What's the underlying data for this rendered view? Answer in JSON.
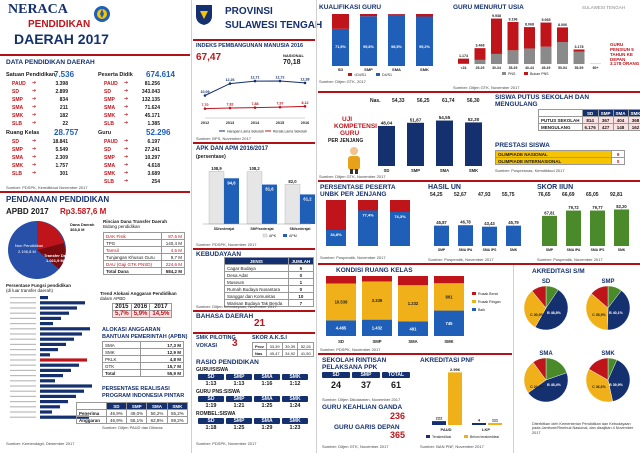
{
  "header": {
    "title1": "NERACA",
    "title2": "PENDIDIKAN",
    "title3": "DAERAH 2017",
    "province1": "PROVINSI",
    "province2": "SULAWESI TENGAH"
  },
  "colors": {
    "accent": "#c0141b",
    "navy": "#14306e",
    "blue": "#1f5fb8",
    "green": "#4a8a2a",
    "gray": "#8a8a8a"
  },
  "data_pendidikan": {
    "title": "DATA PENDIDIKAN DAERAH",
    "satuan": {
      "label": "Satuan Pendidikan",
      "total": "7.536",
      "rows": [
        [
          "PAUD",
          "3.398"
        ],
        [
          "SD",
          "2.899"
        ],
        [
          "SMP",
          "834"
        ],
        [
          "SMA",
          "211"
        ],
        [
          "SMK",
          "182"
        ],
        [
          "SLB",
          "22"
        ]
      ]
    },
    "peserta": {
      "label": "Peserta Didik",
      "total": "674.614",
      "rows": [
        [
          "PAUD",
          "81.256"
        ],
        [
          "SD",
          "343.043"
        ],
        [
          "SMP",
          "132.135"
        ],
        [
          "SMA",
          "71.624"
        ],
        [
          "SMK",
          "45.171"
        ],
        [
          "SLB",
          "1.385"
        ]
      ]
    },
    "ruang": {
      "label": "Ruang Kelas",
      "total": "28.757",
      "rows": [
        [
          "SD",
          "18.841"
        ],
        [
          "SMP",
          "5.549"
        ],
        [
          "SMA",
          "2.309"
        ],
        [
          "SMK",
          "1.757"
        ],
        [
          "SLB",
          "301"
        ]
      ]
    },
    "guru": {
      "label": "Guru",
      "total": "52.296",
      "rows": [
        [
          "PAUD",
          "6.197"
        ],
        [
          "SD",
          "27.241"
        ],
        [
          "SMP",
          "10.297"
        ],
        [
          "SMA",
          "4.618"
        ],
        [
          "SMK",
          "3.689"
        ],
        [
          "SLB",
          "254"
        ]
      ]
    },
    "source": "Sumber: PDSPK, Kemdikbud November 2017"
  },
  "pendanaan": {
    "title": "PENDANAAN PENDIDIKAN",
    "apbd_label": "APBD 2017",
    "apbd_value": "Rp3.587,6 M",
    "non_label": "Non Pendidikan",
    "non_value": "2.196,8 M",
    "dana_label": "Dana Daerah",
    "dana_value": "368,8 M",
    "transfer_label": "Transfer Daerah",
    "transfer_value": "1.021,9 M",
    "rincian_title": "Rincian Dana Transfer Daerah",
    "rincian_sub": "Bidang pendidikan",
    "rincian": [
      [
        "DAK Fisik",
        "87,6 M"
      ],
      [
        "TPG",
        "140,4 M"
      ],
      [
        "Tamsil",
        "4,5 M"
      ],
      [
        "Tunjangan Khusus Guru",
        "9,7 M"
      ],
      [
        "DAU (Gaji GTK PNSD)",
        "224,6 M"
      ],
      [
        "Total Dana",
        "584,2 M"
      ]
    ],
    "persentase_title": "Persentase Fungsi pendidikan",
    "persentase_sub": "(di luar transfer daerah)",
    "tren_title": "Trend Alokasi Anggaran Pendidikan",
    "tren_sub": "dalam APBD",
    "tren": {
      "years": [
        "2015",
        "2016",
        "2017"
      ],
      "values": [
        "5,7%",
        "5,9%",
        "14,5%"
      ]
    }
  },
  "alokasi": {
    "title1": "ALOKASI ANGGARAN",
    "title2": "BANTUAN PEMERINTAH (APBN)",
    "rows": [
      [
        "SMA",
        "17,3 M"
      ],
      [
        "SMK",
        "12,9 M"
      ],
      [
        "PKLK",
        "4,8 M"
      ],
      [
        "GTK",
        "15,7 M"
      ],
      [
        "Total",
        "55,9 M"
      ]
    ]
  },
  "pip": {
    "title1": "PERSENTASE REALISASI",
    "title2": "PROGRAM INDONESIA PINTAR",
    "cols": [
      "SD",
      "SMP",
      "SMA",
      "SMK"
    ],
    "rows": [
      [
        "Penerima",
        "46,9%",
        "49,0%",
        "56,2%",
        "55,2%"
      ],
      [
        "Anggaran",
        "46,9%",
        "55,1%",
        "62,8%",
        "59,2%"
      ]
    ],
    "source": "Sumber: Ditjen PAUD dan Dikmas"
  },
  "ipm": {
    "title": "INDEKS PEMBANGUNAN MANUSIA 2016",
    "value": "67,47",
    "nasional_label": "NASIONAL",
    "nasional": "70,18",
    "years": [
      "2012",
      "2013",
      "2014",
      "2015",
      "2016"
    ],
    "harapan": [
      10.09,
      12.26,
      12.71,
      12.72,
      12.38
    ],
    "harapan_labels": [
      "10,09",
      "12,26",
      "12,71",
      "12,72",
      "12,38"
    ],
    "rata": [
      7.7,
      7.82,
      7.88,
      7.97,
      8.12
    ],
    "rata_labels": [
      "7,70",
      "7,82",
      "7,88",
      "7,97",
      "8,12"
    ],
    "legend1": "Harapan Lama Sekolah",
    "legend2": "Rerata Lama Sekolah",
    "source": "Sumber: BPS, November 2017"
  },
  "apk": {
    "title": "APK DAN APM 2016/2017",
    "sub": "(persentase)",
    "cats": [
      "SD/sederajat",
      "SMP/sederajat",
      "SM/sederajat"
    ],
    "apk": [
      108.9,
      108.2,
      82.0
    ],
    "apm": [
      94.6,
      81.6,
      61.2
    ],
    "apk_labels": [
      "108,9",
      "108,2",
      "82,0"
    ],
    "apm_labels": [
      "94,6",
      "81,6",
      "61,2"
    ],
    "legend": [
      "APK",
      "APM"
    ],
    "source": "Sumber: PDSPK, November 2017"
  },
  "kebudayaan": {
    "title": "KEBUDAYAAN",
    "header": [
      "JENIS",
      "JUMLAH"
    ],
    "rows": [
      [
        "Cagar Budaya",
        "5"
      ],
      [
        "Desa Adat",
        "0"
      ],
      [
        "Museum",
        "1"
      ],
      [
        "Rumah Budaya Nusantara",
        "0"
      ],
      [
        "Sanggar dan Komunitas",
        "10"
      ],
      [
        "Warisan Budaya Tak Benda",
        "7"
      ]
    ],
    "source": "Sumber: Ditjen Kebudayaan, November 2017"
  },
  "bahasa": {
    "title": "BAHASA DAERAH",
    "value": "21"
  },
  "smk_pilot": {
    "title1": "SMK PILOTING",
    "title2": "VOKASI",
    "value": "3"
  },
  "akasi": {
    "title": "SKOR A.K.S.I",
    "rows": [
      [
        "Prov",
        "33,39",
        "39,39",
        "52,26"
      ],
      [
        "Nas",
        "45,47",
        "34,92",
        "41,50"
      ]
    ]
  },
  "rasio": {
    "title": "RASIO PENDIDIKAN",
    "guru_siswa": "GURU/SISWA",
    "cols": [
      "SD",
      "SMP",
      "SMA",
      "SMK"
    ],
    "gs": [
      "1:13",
      "1:13",
      "1:16",
      "1:12"
    ],
    "gpns_label": "GURU PNS:SISWA",
    "gpns": [
      "1:19",
      "1:21",
      "1:25",
      "1:24"
    ],
    "rombel_label": "ROMBEL:SISWA",
    "rombel": [
      "1:18",
      "1:25",
      "1:29",
      "1:23"
    ],
    "source": "Sumber: PDSPK, November 2017"
  },
  "kualifikasi": {
    "title": "KUALIFIKASI GURU",
    "cats": [
      "SD",
      "SMP",
      "SMA",
      "SMK"
    ],
    "lt": [
      28.5,
      4.2,
      1.5,
      4.8
    ],
    "ge": [
      71.5,
      95.8,
      98.5,
      95.2
    ],
    "labels": [
      "71,5%",
      "95,8%",
      "98,5%",
      "95,2%"
    ],
    "legend": [
      "<D4/S1",
      "D4/S1"
    ],
    "source": "Sumber: Ditjen GTK, 2017"
  },
  "usia": {
    "title": "GURU MENURUT USIA",
    "region": "SULAWESI TENGAH",
    "cats": [
      "<24",
      "25-29",
      "30-34",
      "35-39",
      "40-44",
      "45-49",
      "50-54",
      "55-59",
      "60+"
    ],
    "labels": [
      "1.174",
      "3.468",
      "9.938",
      "9.196",
      "8.068",
      "9.065",
      "8.006",
      "3.178",
      ""
    ],
    "pns": [
      80,
      900,
      2200,
      3000,
      3400,
      3800,
      4800,
      2700,
      50
    ],
    "bukan": [
      1094,
      2568,
      7738,
      6196,
      4668,
      5265,
      3206,
      478,
      10
    ],
    "pensiun_label": "GURU PENSIUN 5 TAHUN KE DEPAN",
    "pensiun_value": "3.178 ORANG",
    "legend": [
      "PNS",
      "Bukan PNS"
    ],
    "source": "Sumber: Ditjen GTK, November 2017"
  },
  "uji": {
    "title1": "UJI",
    "title2": "KOMPETENSI",
    "title3": "GURU",
    "title4": "PER JENJANG",
    "nas_label": "Nas.",
    "nas": [
      "54,33",
      "56,25",
      "61,74",
      "56,30"
    ],
    "cats": [
      "SD",
      "SMP",
      "SMA",
      "SMK"
    ],
    "values": [
      48.04,
      51.87,
      54.55,
      52.3
    ],
    "labels": [
      "48,04",
      "51,87",
      "54,55",
      "52,30"
    ],
    "source": "Sumber: Ditjen GTK, November 2017"
  },
  "siswa_putus": {
    "title1": "SISWA PUTUS SEKOLAH DAN",
    "title2": "MENGULANG",
    "cols": [
      "SD",
      "SMP",
      "SMA",
      "SMK"
    ],
    "rows": [
      [
        "PUTUS SEKOLAH",
        "814",
        "367",
        "404",
        "368"
      ],
      [
        "MENGULANG",
        "6.176",
        "427",
        "148",
        "162"
      ]
    ]
  },
  "prestasi": {
    "title": "PRESTASI SISWA",
    "rows": [
      [
        "OLIMPIADE NASIONAL",
        "9"
      ],
      [
        "OLIMPIADE INTERNASIONAL",
        "0"
      ]
    ],
    "source": "Sumber: Puspresnas, Kemdikbud 2017"
  },
  "unbk": {
    "title1": "PERSENTASE PESERTA",
    "title2": "UNBK PER JENJANG",
    "cats": [
      "SMP",
      "SMA",
      "SMK"
    ],
    "values": [
      34.8,
      77.4,
      74.3
    ],
    "labels": [
      "34,8%",
      "77,4%",
      "74,3%"
    ],
    "source": "Sumber: Puspendik, November 2017"
  },
  "hasil_un": {
    "title": "HASIL UN",
    "nas": [
      "54,25",
      "52,67",
      "47,93",
      "55,75"
    ],
    "cats": [
      "SMP",
      "SMA IPA",
      "SMA IPS",
      "SMK"
    ],
    "values": [
      45.87,
      46.78,
      43.43,
      45.79
    ],
    "labels": [
      "45,87",
      "46,78",
      "43,43",
      "45,79"
    ],
    "source": "Sumber: Puspendik, November 2017"
  },
  "skor_iiun": {
    "title": "SKOR IIUN",
    "nas": [
      "76,65",
      "66,69",
      "65,05",
      "92,81"
    ],
    "cats": [
      "SMP",
      "SMA IPA",
      "SMA IPS",
      "SMK"
    ],
    "values": [
      67.81,
      79.72,
      79.77,
      82.2
    ],
    "labels": [
      "67,81",
      "79,72",
      "79,77",
      "82,20"
    ],
    "source": "Sumber: Puspendik, November 2017"
  },
  "kondisi": {
    "title": "KONDISI RUANG KELAS",
    "cats": [
      "SD",
      "SMP",
      "SMA",
      "SMK"
    ],
    "baik": [
      4485,
      1432,
      491,
      745
    ],
    "rusak_ringan": [
      10538,
      3339,
      1232,
      801
    ],
    "rusak_berat": [
      2140,
      478,
      310,
      211
    ],
    "baik_l": [
      "4.485",
      "1.432",
      "491",
      "745"
    ],
    "rr_l": [
      "10.538",
      "3.339",
      "1.232",
      "801"
    ],
    "legend": [
      "Rusak Berat",
      "Rusak Ringan",
      "Baik"
    ],
    "source": "Sumber: PDSPK, November 2017"
  },
  "rintisan": {
    "title1": "SEKOLAH RINTISAN",
    "title2": "PELAKSANA PPK",
    "cols": [
      "SD",
      "SMP",
      "TOTAL"
    ],
    "values": [
      "24",
      "37",
      "61"
    ],
    "source": "Sumber: Ditjen Dikdasmen, November 2017"
  },
  "ganda": {
    "title": "GURU KEAHLIAN GANDA",
    "value": "236"
  },
  "garis": {
    "title": "GURU GARIS DEPAN",
    "value": "365",
    "source": "Sumber: Ditjen GTK, November 2017"
  },
  "pnf": {
    "title": "AKREDITASI PNF",
    "cats": [
      "PAUD",
      "LKP"
    ],
    "terakreditasi": [
      222,
      4
    ],
    "belum": [
      2996,
      111
    ],
    "labels_t": [
      "222",
      "4"
    ],
    "labels_b": [
      "2.996",
      "111"
    ],
    "legend": [
      "Terakreditasi",
      "Belum terakreditasi"
    ],
    "source": "Sumber: BAN PNF, November 2017"
  },
  "akreditasi": {
    "title": "AKREDITASI S/M",
    "charts": [
      {
        "name": "SD",
        "slices": [
          {
            "k": "A",
            "v": 9.4
          },
          {
            "k": "B",
            "v": 48.8
          },
          {
            "k": "C",
            "v": 30.9
          },
          {
            "k": "TT",
            "v": 10.9
          }
        ],
        "labels": [
          "B 48,8%",
          "C 30,9%"
        ]
      },
      {
        "name": "SMP",
        "slices": [
          {
            "k": "A",
            "v": 10.4
          },
          {
            "k": "B",
            "v": 40.1
          },
          {
            "k": "C",
            "v": 35.9
          },
          {
            "k": "TT",
            "v": 13.6
          }
        ],
        "labels": [
          "B 40,1%",
          "C 35,9%"
        ]
      },
      {
        "name": "SMA",
        "slices": [
          {
            "k": "A",
            "v": 19.7
          },
          {
            "k": "B",
            "v": 45.4
          },
          {
            "k": "C",
            "v": 24.9
          },
          {
            "k": "TT",
            "v": 10.0
          }
        ],
        "labels": [
          "B 45,4%",
          "C 24,9%"
        ]
      },
      {
        "name": "SMK",
        "slices": [
          {
            "k": "A",
            "v": 6.7
          },
          {
            "k": "B",
            "v": 39.9
          },
          {
            "k": "C",
            "v": 36.6
          },
          {
            "k": "TT",
            "v": 16.8
          }
        ],
        "labels": [
          "B 39,9%",
          "C 36,6%"
        ]
      }
    ],
    "footer": "Diterbitkan oleh Kementerian Pendidikan dan Kebudayaan pada Jambore/Rembuk Nasional, dan disajikan 4 November 2017"
  },
  "footer_source": "Sumber: Kemendagri, Desember 2017"
}
